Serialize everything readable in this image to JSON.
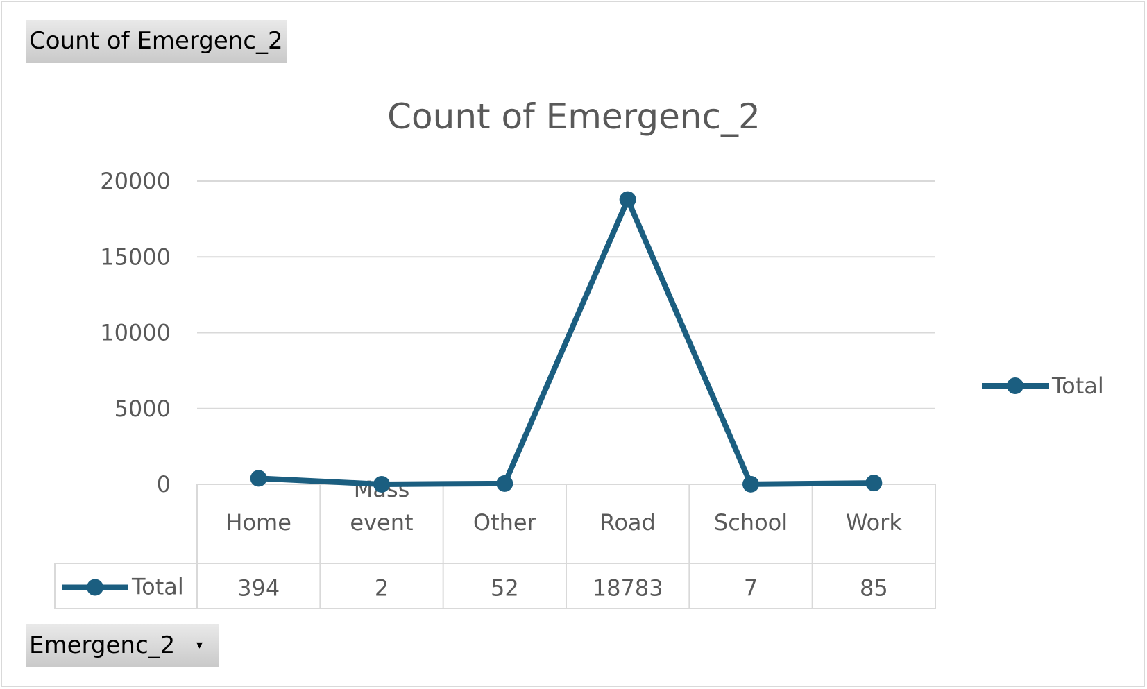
{
  "field_buttons": {
    "value_field": "Count of Emergenc_2",
    "axis_field": "Emergenc_2"
  },
  "chart_data": {
    "type": "line",
    "title": "Count of Emergenc_2",
    "categories": [
      "Home",
      "Mass event",
      "Other",
      "Road",
      "School",
      "Work"
    ],
    "series": [
      {
        "name": "Total",
        "values": [
          394,
          2,
          52,
          18783,
          7,
          85
        ]
      }
    ],
    "ylim": [
      0,
      20000
    ],
    "yticks": [
      0,
      5000,
      10000,
      15000,
      20000
    ],
    "grid": true,
    "legend": "right",
    "data_table": true,
    "color": "#1b5e80"
  }
}
